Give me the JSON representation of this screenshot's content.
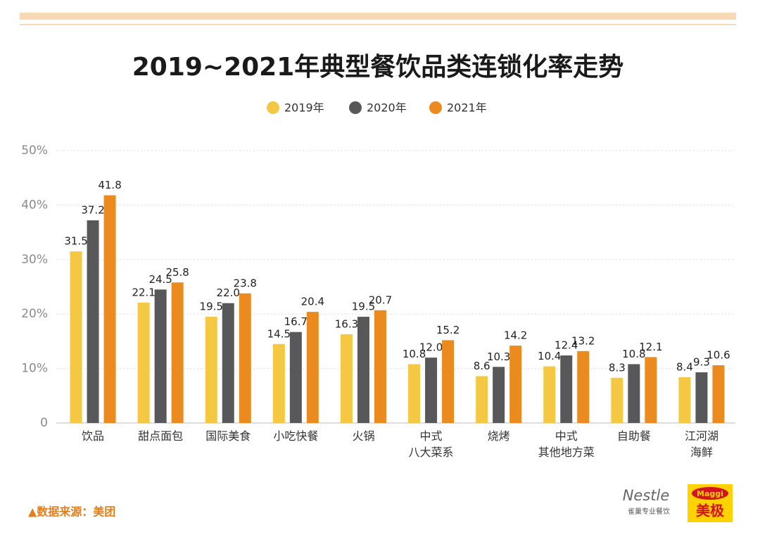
{
  "chart_data": {
    "type": "bar",
    "title": "2019~2021年典型餐饮品类连锁化率走势",
    "categories": [
      [
        "饮品"
      ],
      [
        "甜点面包"
      ],
      [
        "国际美食"
      ],
      [
        "小吃快餐"
      ],
      [
        "火锅"
      ],
      [
        "中式",
        "八大菜系"
      ],
      [
        "烧烤"
      ],
      [
        "中式",
        "其他地方菜"
      ],
      [
        "自助餐"
      ],
      [
        "江河湖",
        "海鲜"
      ]
    ],
    "series": [
      {
        "name": "2019年",
        "color": "#f5c843",
        "values": [
          31.5,
          22.1,
          19.5,
          14.5,
          16.3,
          10.8,
          8.6,
          10.4,
          8.3,
          8.4
        ],
        "value_labels": [
          "31.5",
          "22.1",
          "19.5",
          "14.5",
          "16.3",
          "10.8",
          "8.6",
          "10.4",
          "8.3",
          "8.4"
        ]
      },
      {
        "name": "2020年",
        "color": "#58585a",
        "values": [
          37.2,
          24.5,
          22.0,
          16.7,
          19.5,
          12.0,
          10.3,
          12.4,
          10.8,
          9.3
        ],
        "value_labels": [
          "37.2",
          "24.5",
          "22.0",
          "16.7",
          "19.5",
          "12.0",
          "10.3",
          "12.4",
          "10.8",
          "9.3"
        ]
      },
      {
        "name": "2021年",
        "color": "#ea8a1f",
        "values": [
          41.8,
          25.8,
          23.8,
          20.4,
          20.7,
          15.2,
          14.2,
          13.2,
          12.1,
          10.6
        ],
        "value_labels": [
          "41.8",
          "25.8",
          "23.8",
          "20.4",
          "20.7",
          "15.2",
          "14.2",
          "13.2",
          "12.1",
          "10.6"
        ]
      }
    ],
    "ylim": [
      0,
      50
    ],
    "yticks": [
      0,
      {
        "value": 10,
        "label": "10%"
      },
      {
        "value": 20,
        "label": "20%"
      },
      {
        "value": 30,
        "label": "30%"
      },
      {
        "value": 40,
        "label": "40%"
      },
      {
        "value": 50,
        "label": "50%"
      }
    ],
    "grid": true,
    "source": "▲数据来源：美团",
    "logos": {
      "nestle": "Nestle",
      "nestle_sub": "雀巢专业餐饮",
      "maggi": "Maggi",
      "maggi_cn": "美极"
    }
  }
}
